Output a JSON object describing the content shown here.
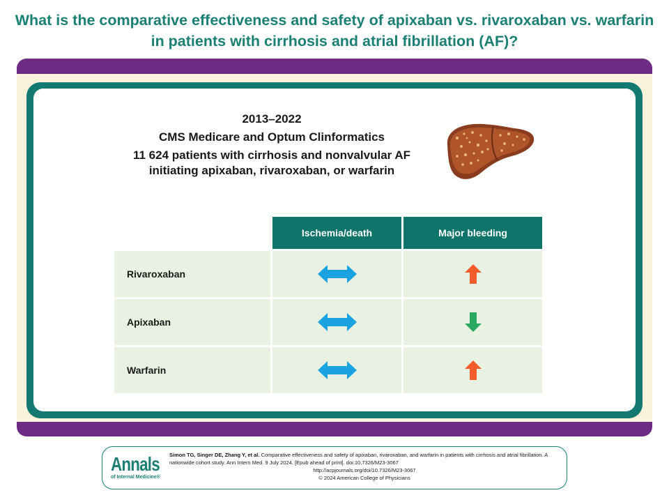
{
  "title": "What is the comparative effectiveness and safety of apixaban vs. rivaroxaban vs. warfarin in patients with cirrhosis and atrial fibrillation (AF)?",
  "study": {
    "years": "2013–2022",
    "sources": "CMS Medicare and Optum Clinformatics",
    "population_line1": "11 624 patients with cirrhosis and nonvalvular AF",
    "population_line2": "initiating apixaban, rivaroxaban, or warfarin"
  },
  "colors": {
    "title": "#1b7f74",
    "frame": "#6e2b86",
    "panel": "#127a70",
    "header": "#0f7469",
    "cell": "#e8f1e2",
    "neutral_arrow": "#1aa3e0",
    "up_arrow": "#f25c2a",
    "down_arrow": "#2aa860"
  },
  "table": {
    "headers": [
      "Ischemia/death",
      "Major bleeding"
    ],
    "rows": [
      {
        "drug": "Rivaroxaban",
        "ischemia_death": "no-difference",
        "major_bleeding": "increased"
      },
      {
        "drug": "Apixaban",
        "ischemia_death": "no-difference",
        "major_bleeding": "decreased"
      },
      {
        "drug": "Warfarin",
        "ischemia_death": "no-difference",
        "major_bleeding": "increased"
      }
    ]
  },
  "icons": {
    "liver": "liver-icon",
    "no_difference": "double-arrow-icon",
    "increased": "up-arrow-icon",
    "decreased": "down-arrow-icon"
  },
  "footer": {
    "logo_main": "Annals",
    "logo_sub": "of Internal Medicine",
    "logo_reg": "®",
    "authors": "Simon TG, Singer DE, Zhang Y, et al.",
    "citation": "Comparative effectiveness and safety of apixaban, rivaroxaban, and warfarin in patients with cirrhosis and atrial fibrillation. A nationwide cohort study. Ann Intern Med. 9 July 2024. [Epub ahead of print]. doi:10.7326/M23-3067",
    "url": "http://acpjournals.org/doi/10.7326/M23-3067",
    "copyright": "© 2024 American College of Physicians"
  }
}
